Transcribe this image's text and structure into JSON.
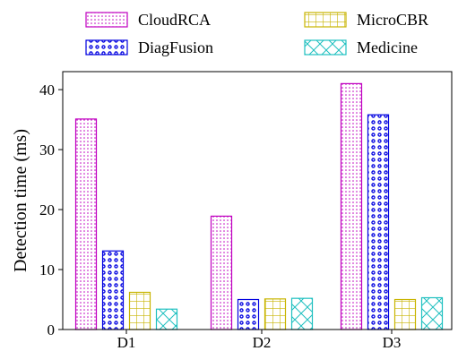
{
  "chart_data": {
    "type": "bar",
    "categories": [
      "D1",
      "D2",
      "D3"
    ],
    "series": [
      {
        "name": "CloudRCA",
        "values": [
          35.1,
          18.9,
          41.0
        ],
        "color": "#c000c0",
        "pattern": "dots"
      },
      {
        "name": "DiagFusion",
        "values": [
          13.1,
          5.0,
          35.8
        ],
        "color": "#0000e0",
        "pattern": "circles"
      },
      {
        "name": "MicroCBR",
        "values": [
          6.2,
          5.1,
          5.0
        ],
        "color": "#c8b400",
        "pattern": "grid"
      },
      {
        "name": "Medicine",
        "values": [
          3.4,
          5.2,
          5.3
        ],
        "color": "#20c0c0",
        "pattern": "crosshatch"
      }
    ],
    "xlabel": "",
    "ylabel": "Detection time (ms)",
    "ylim": [
      0,
      43
    ],
    "yticks": [
      0,
      10,
      20,
      30,
      40
    ],
    "grid": false,
    "legend_position": "top, two columns, above plot"
  }
}
